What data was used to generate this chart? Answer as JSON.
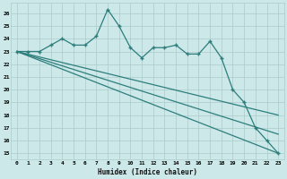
{
  "xlabel": "Humidex (Indice chaleur)",
  "bg_color": "#cce8e8",
  "grid_color": "#aacccc",
  "line_color": "#2d7d7d",
  "xlim": [
    -0.5,
    23.5
  ],
  "ylim": [
    14.5,
    26.8
  ],
  "yticks": [
    15,
    16,
    17,
    18,
    19,
    20,
    21,
    22,
    23,
    24,
    25,
    26
  ],
  "xticks": [
    0,
    1,
    2,
    3,
    4,
    5,
    6,
    7,
    8,
    9,
    10,
    11,
    12,
    13,
    14,
    15,
    16,
    17,
    18,
    19,
    20,
    21,
    22,
    23
  ],
  "series": [
    {
      "x": [
        0,
        1,
        2,
        3,
        4,
        5,
        6,
        7,
        8,
        9,
        10,
        11,
        12,
        13,
        14,
        15,
        16,
        17,
        18,
        19,
        20,
        21,
        22,
        23
      ],
      "y": [
        23,
        23,
        23,
        23.5,
        24,
        23.5,
        23.5,
        24.2,
        26.3,
        25,
        23.3,
        22.5,
        23.3,
        23.3,
        23.5,
        22.8,
        22.8,
        23.8,
        22.5,
        20,
        19,
        17,
        16,
        15
      ],
      "marker": "+",
      "markersize": 3.0,
      "linewidth": 0.9
    },
    {
      "x": [
        0,
        23
      ],
      "y": [
        23,
        15
      ],
      "marker": null,
      "linewidth": 0.9
    },
    {
      "x": [
        0,
        23
      ],
      "y": [
        23,
        16.5
      ],
      "marker": null,
      "linewidth": 0.9
    },
    {
      "x": [
        0,
        23
      ],
      "y": [
        23,
        18
      ],
      "marker": null,
      "linewidth": 0.9
    }
  ]
}
